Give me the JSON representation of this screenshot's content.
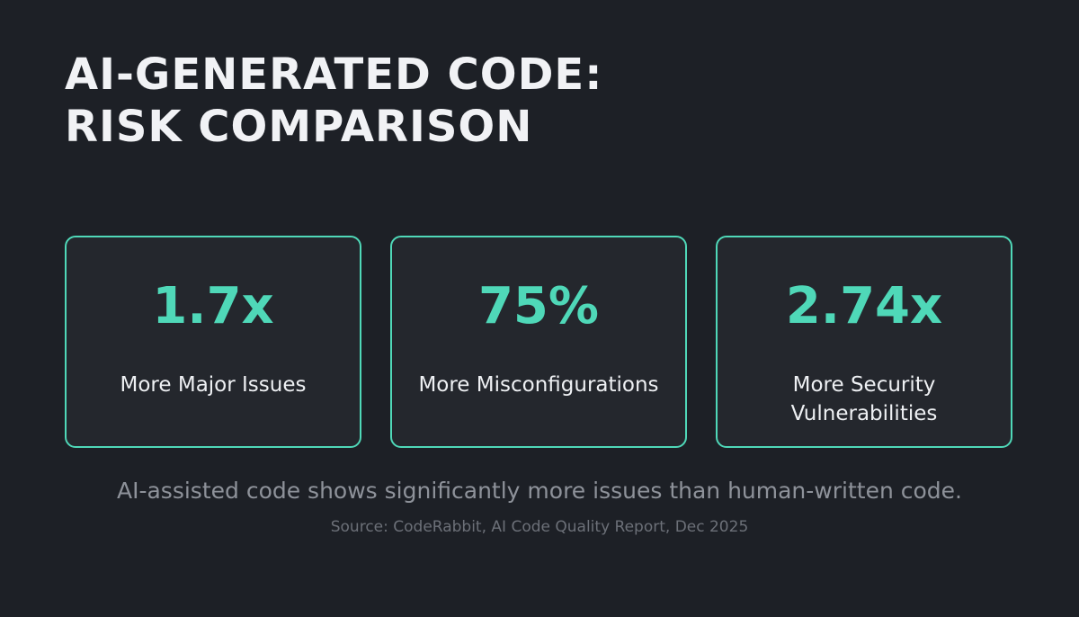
{
  "header": {
    "title_line1": "AI-GENERATED CODE:",
    "title_line2": "RISK COMPARISON"
  },
  "stats": [
    {
      "value": "1.7x",
      "label": "More Major Issues"
    },
    {
      "value": "75%",
      "label": "More Misconfigurations"
    },
    {
      "value": "2.74x",
      "label": "More Security Vulnerabilities"
    }
  ],
  "summary": "AI-assisted code shows significantly more issues than human-written code.",
  "source": "Source: CodeRabbit, AI Code Quality Report, Dec 2025",
  "colors": {
    "background": "#1d2026",
    "card_background": "#24272d",
    "accent": "#4fd8b8",
    "text_primary": "#eef0f3",
    "text_muted": "#8e929a"
  }
}
